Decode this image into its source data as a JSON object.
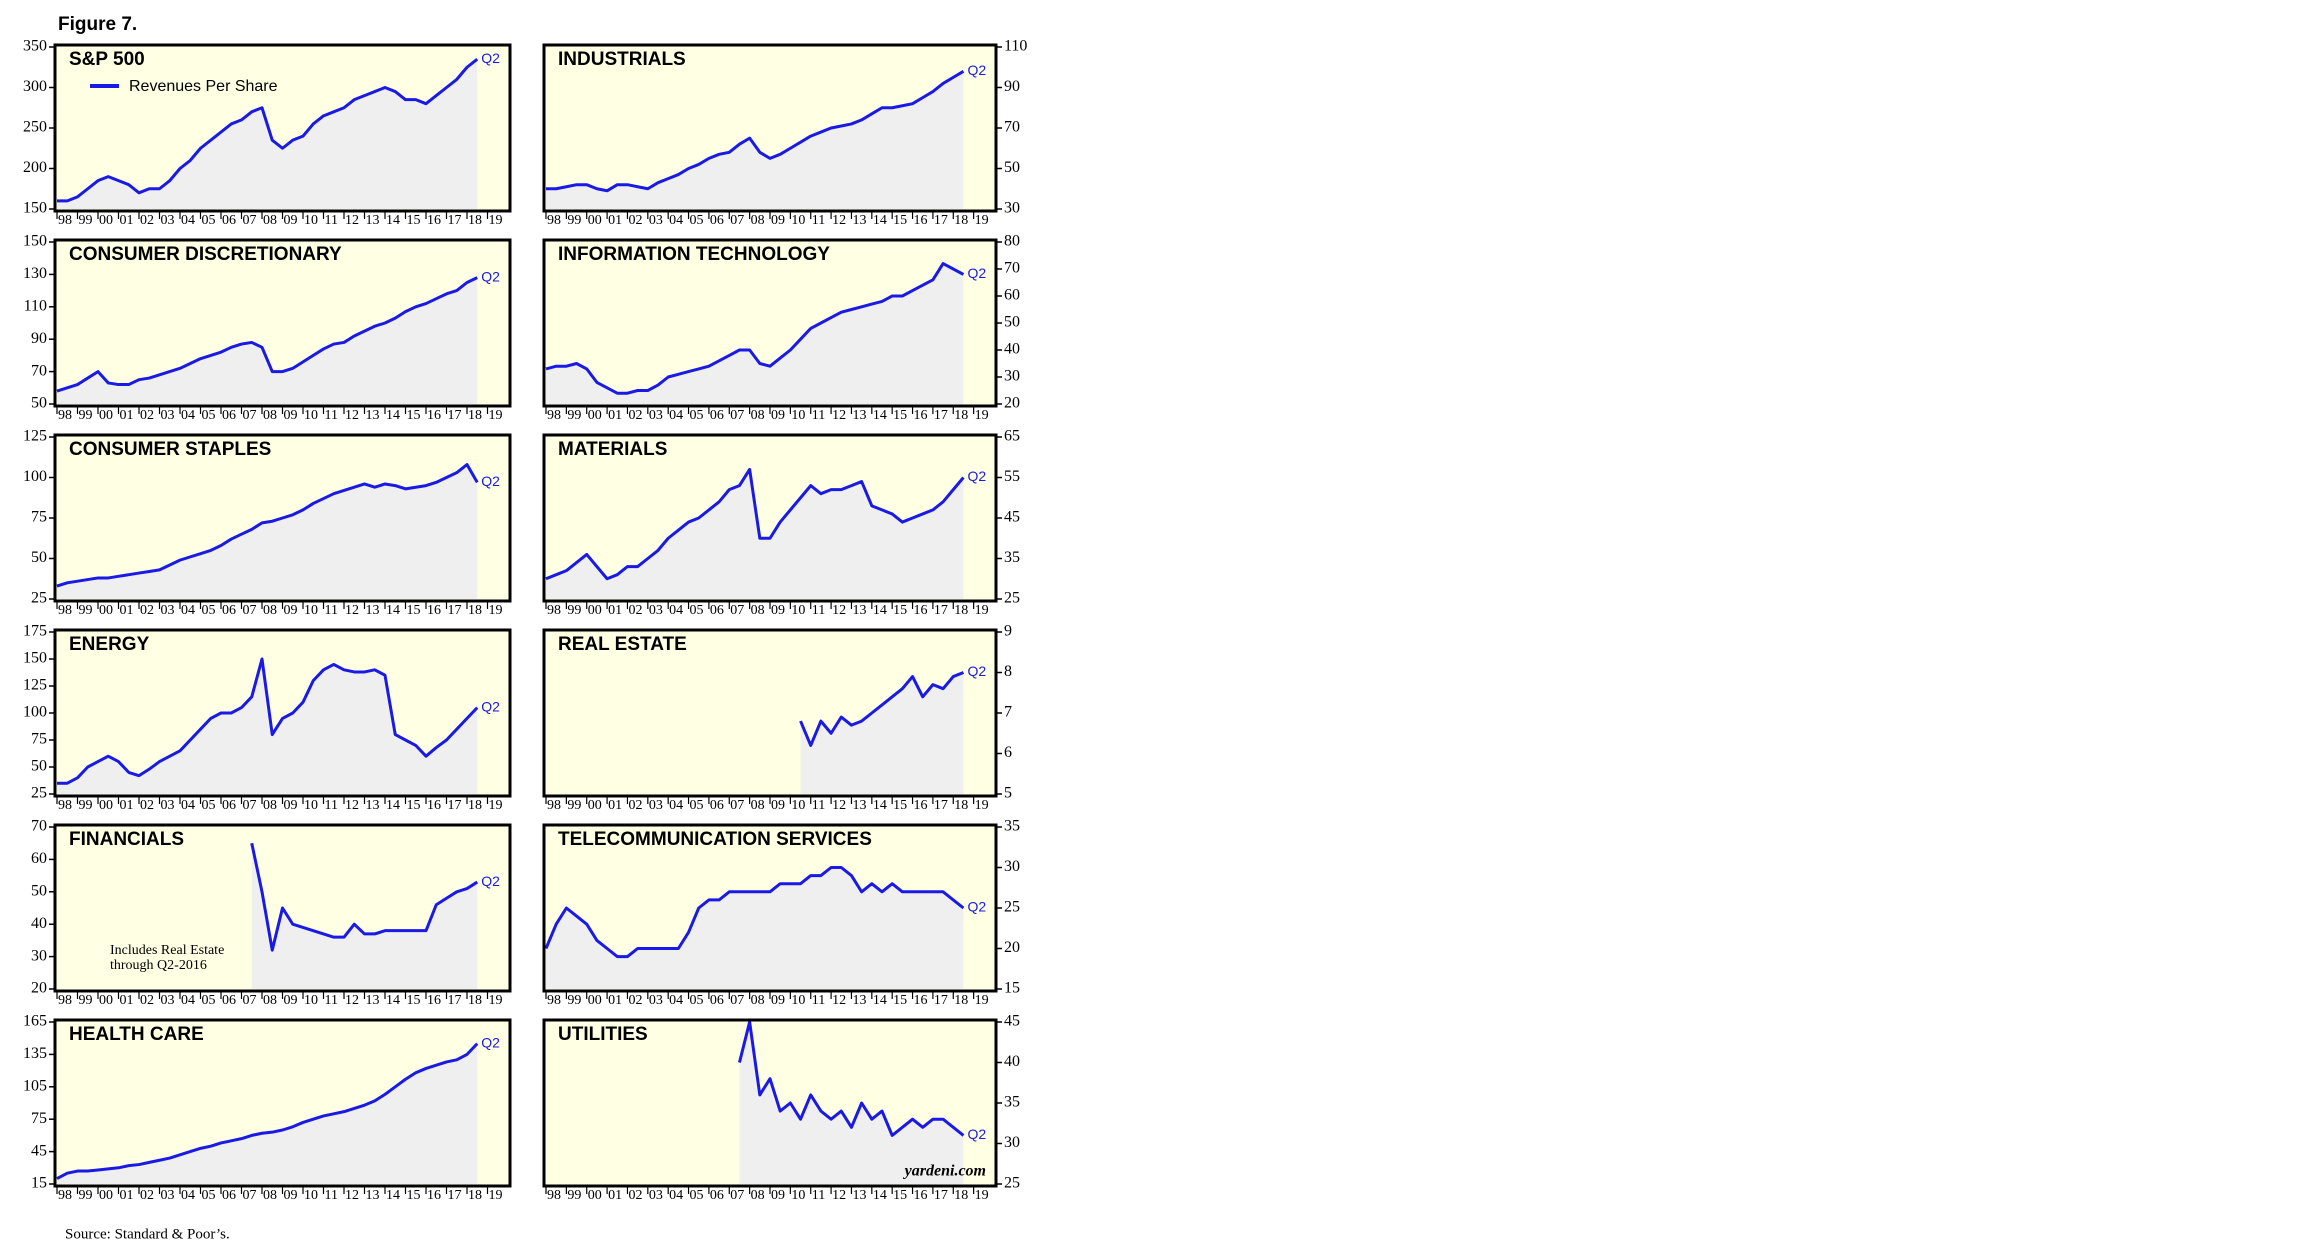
{
  "figure_label": "Figure 7.",
  "source": "Source: Standard & Poor’s.",
  "x_axis": {
    "xlim": [
      1998,
      2020
    ],
    "xticks": [
      {
        "value": 1998,
        "label": "98"
      },
      {
        "value": 1999,
        "label": "99"
      },
      {
        "value": 2000,
        "label": "00"
      },
      {
        "value": 2001,
        "label": "01"
      },
      {
        "value": 2002,
        "label": "02"
      },
      {
        "value": 2003,
        "label": "03"
      },
      {
        "value": 2004,
        "label": "04"
      },
      {
        "value": 2005,
        "label": "05"
      },
      {
        "value": 2006,
        "label": "06"
      },
      {
        "value": 2007,
        "label": "07"
      },
      {
        "value": 2008,
        "label": "08"
      },
      {
        "value": 2009,
        "label": "09"
      },
      {
        "value": 2010,
        "label": "10"
      },
      {
        "value": 2011,
        "label": "11"
      },
      {
        "value": 2012,
        "label": "12"
      },
      {
        "value": 2013,
        "label": "13"
      },
      {
        "value": 2014,
        "label": "14"
      },
      {
        "value": 2015,
        "label": "15"
      },
      {
        "value": 2016,
        "label": "16"
      },
      {
        "value": 2017,
        "label": "17"
      },
      {
        "value": 2018,
        "label": "18"
      },
      {
        "value": 2019,
        "label": "19"
      }
    ]
  },
  "chart_data": [
    {
      "type": "line",
      "title": "S&P 500",
      "legend": "Revenues Per Share",
      "end_label": "Q2",
      "color": "#1a1ae6",
      "yaxis_side": "left",
      "ylim": [
        150,
        350
      ],
      "yticks": [
        150,
        200,
        250,
        300,
        350
      ],
      "x": [
        1998,
        1998.5,
        1999,
        1999.5,
        2000,
        2000.5,
        2001,
        2001.5,
        2002,
        2002.5,
        2003,
        2003.5,
        2004,
        2004.5,
        2005,
        2005.5,
        2006,
        2006.5,
        2007,
        2007.5,
        2008,
        2008.5,
        2009,
        2009.5,
        2010,
        2010.5,
        2011,
        2011.5,
        2012,
        2012.5,
        2013,
        2013.5,
        2014,
        2014.5,
        2015,
        2015.5,
        2016,
        2016.5,
        2017,
        2017.5,
        2018,
        2018.5
      ],
      "values": [
        160,
        160,
        165,
        175,
        185,
        190,
        185,
        180,
        170,
        175,
        175,
        185,
        200,
        210,
        225,
        235,
        245,
        255,
        260,
        270,
        275,
        235,
        225,
        235,
        240,
        255,
        265,
        270,
        275,
        285,
        290,
        295,
        300,
        295,
        285,
        285,
        280,
        290,
        300,
        310,
        325,
        335
      ]
    },
    {
      "type": "line",
      "title": "INDUSTRIALS",
      "end_label": "Q2",
      "color": "#1a1ae6",
      "yaxis_side": "right",
      "ylim": [
        30,
        110
      ],
      "yticks": [
        30,
        50,
        70,
        90,
        110
      ],
      "x": [
        1998,
        1998.5,
        1999,
        1999.5,
        2000,
        2000.5,
        2001,
        2001.5,
        2002,
        2002.5,
        2003,
        2003.5,
        2004,
        2004.5,
        2005,
        2005.5,
        2006,
        2006.5,
        2007,
        2007.5,
        2008,
        2008.5,
        2009,
        2009.5,
        2010,
        2010.5,
        2011,
        2011.5,
        2012,
        2012.5,
        2013,
        2013.5,
        2014,
        2014.5,
        2015,
        2015.5,
        2016,
        2016.5,
        2017,
        2017.5,
        2018,
        2018.5
      ],
      "values": [
        40,
        40,
        41,
        42,
        42,
        40,
        39,
        42,
        42,
        41,
        40,
        43,
        45,
        47,
        50,
        52,
        55,
        57,
        58,
        62,
        65,
        58,
        55,
        57,
        60,
        63,
        66,
        68,
        70,
        71,
        72,
        74,
        77,
        80,
        80,
        81,
        82,
        85,
        88,
        92,
        95,
        98
      ]
    },
    {
      "type": "line",
      "title": "CONSUMER DISCRETIONARY",
      "end_label": "Q2",
      "color": "#1a1ae6",
      "yaxis_side": "left",
      "ylim": [
        50,
        150
      ],
      "yticks": [
        50,
        70,
        90,
        110,
        130,
        150
      ],
      "x": [
        1998,
        1998.5,
        1999,
        1999.5,
        2000,
        2000.5,
        2001,
        2001.5,
        2002,
        2002.5,
        2003,
        2003.5,
        2004,
        2004.5,
        2005,
        2005.5,
        2006,
        2006.5,
        2007,
        2007.5,
        2008,
        2008.5,
        2009,
        2009.5,
        2010,
        2010.5,
        2011,
        2011.5,
        2012,
        2012.5,
        2013,
        2013.5,
        2014,
        2014.5,
        2015,
        2015.5,
        2016,
        2016.5,
        2017,
        2017.5,
        2018,
        2018.5
      ],
      "values": [
        58,
        60,
        62,
        66,
        70,
        63,
        62,
        62,
        65,
        66,
        68,
        70,
        72,
        75,
        78,
        80,
        82,
        85,
        87,
        88,
        85,
        70,
        70,
        72,
        76,
        80,
        84,
        87,
        88,
        92,
        95,
        98,
        100,
        103,
        107,
        110,
        112,
        115,
        118,
        120,
        125,
        128
      ]
    },
    {
      "type": "line",
      "title": "INFORMATION TECHNOLOGY",
      "end_label": "Q2",
      "color": "#1a1ae6",
      "yaxis_side": "right",
      "ylim": [
        20,
        80
      ],
      "yticks": [
        20,
        30,
        40,
        50,
        60,
        70,
        80
      ],
      "x": [
        1998,
        1998.5,
        1999,
        1999.5,
        2000,
        2000.5,
        2001,
        2001.5,
        2002,
        2002.5,
        2003,
        2003.5,
        2004,
        2004.5,
        2005,
        2005.5,
        2006,
        2006.5,
        2007,
        2007.5,
        2008,
        2008.5,
        2009,
        2009.5,
        2010,
        2010.5,
        2011,
        2011.5,
        2012,
        2012.5,
        2013,
        2013.5,
        2014,
        2014.5,
        2015,
        2015.5,
        2016,
        2016.5,
        2017,
        2017.5,
        2018,
        2018.5
      ],
      "values": [
        33,
        34,
        34,
        35,
        33,
        28,
        26,
        24,
        24,
        25,
        25,
        27,
        30,
        31,
        32,
        33,
        34,
        36,
        38,
        40,
        40,
        35,
        34,
        37,
        40,
        44,
        48,
        50,
        52,
        54,
        55,
        56,
        57,
        58,
        60,
        60,
        62,
        64,
        66,
        72,
        70,
        68
      ]
    },
    {
      "type": "line",
      "title": "CONSUMER STAPLES",
      "end_label": "Q2",
      "color": "#1a1ae6",
      "yaxis_side": "left",
      "ylim": [
        25,
        125
      ],
      "yticks": [
        25,
        50,
        75,
        100,
        125
      ],
      "x": [
        1998,
        1998.5,
        1999,
        1999.5,
        2000,
        2000.5,
        2001,
        2001.5,
        2002,
        2002.5,
        2003,
        2003.5,
        2004,
        2004.5,
        2005,
        2005.5,
        2006,
        2006.5,
        2007,
        2007.5,
        2008,
        2008.5,
        2009,
        2009.5,
        2010,
        2010.5,
        2011,
        2011.5,
        2012,
        2012.5,
        2013,
        2013.5,
        2014,
        2014.5,
        2015,
        2015.5,
        2016,
        2016.5,
        2017,
        2017.5,
        2018,
        2018.5
      ],
      "values": [
        33,
        35,
        36,
        37,
        38,
        38,
        39,
        40,
        41,
        42,
        43,
        46,
        49,
        51,
        53,
        55,
        58,
        62,
        65,
        68,
        72,
        73,
        75,
        77,
        80,
        84,
        87,
        90,
        92,
        94,
        96,
        94,
        96,
        95,
        93,
        94,
        95,
        97,
        100,
        103,
        108,
        97
      ]
    },
    {
      "type": "line",
      "title": "MATERIALS",
      "end_label": "Q2",
      "color": "#1a1ae6",
      "yaxis_side": "right",
      "ylim": [
        25,
        65
      ],
      "yticks": [
        25,
        35,
        45,
        55,
        65
      ],
      "x": [
        1998,
        1998.5,
        1999,
        1999.5,
        2000,
        2000.5,
        2001,
        2001.5,
        2002,
        2002.5,
        2003,
        2003.5,
        2004,
        2004.5,
        2005,
        2005.5,
        2006,
        2006.5,
        2007,
        2007.5,
        2008,
        2008.5,
        2009,
        2009.5,
        2010,
        2010.5,
        2011,
        2011.5,
        2012,
        2012.5,
        2013,
        2013.5,
        2014,
        2014.5,
        2015,
        2015.5,
        2016,
        2016.5,
        2017,
        2017.5,
        2018,
        2018.5
      ],
      "values": [
        30,
        31,
        32,
        34,
        36,
        33,
        30,
        31,
        33,
        33,
        35,
        37,
        40,
        42,
        44,
        45,
        47,
        49,
        52,
        53,
        57,
        40,
        40,
        44,
        47,
        50,
        53,
        51,
        52,
        52,
        53,
        54,
        48,
        47,
        46,
        44,
        45,
        46,
        47,
        49,
        52,
        55
      ]
    },
    {
      "type": "line",
      "title": "ENERGY",
      "end_label": "Q2",
      "color": "#1a1ae6",
      "yaxis_side": "left",
      "ylim": [
        25,
        175
      ],
      "yticks": [
        25,
        50,
        75,
        100,
        125,
        150,
        175
      ],
      "x": [
        1998,
        1998.5,
        1999,
        1999.5,
        2000,
        2000.5,
        2001,
        2001.5,
        2002,
        2002.5,
        2003,
        2003.5,
        2004,
        2004.5,
        2005,
        2005.5,
        2006,
        2006.5,
        2007,
        2007.5,
        2008,
        2008.5,
        2009,
        2009.5,
        2010,
        2010.5,
        2011,
        2011.5,
        2012,
        2012.5,
        2013,
        2013.5,
        2014,
        2014.5,
        2015,
        2015.5,
        2016,
        2016.5,
        2017,
        2017.5,
        2018,
        2018.5
      ],
      "values": [
        35,
        35,
        40,
        50,
        55,
        60,
        55,
        45,
        42,
        48,
        55,
        60,
        65,
        75,
        85,
        95,
        100,
        100,
        105,
        115,
        150,
        80,
        95,
        100,
        110,
        130,
        140,
        145,
        140,
        138,
        138,
        140,
        135,
        80,
        75,
        70,
        60,
        68,
        75,
        85,
        95,
        105
      ]
    },
    {
      "type": "line",
      "title": "REAL ESTATE",
      "end_label": "Q2",
      "color": "#1a1ae6",
      "yaxis_side": "right",
      "ylim": [
        5,
        9
      ],
      "yticks": [
        5,
        6,
        7,
        8,
        9
      ],
      "x": [
        2010.5,
        2011,
        2011.5,
        2012,
        2012.5,
        2013,
        2013.5,
        2014,
        2014.5,
        2015,
        2015.5,
        2016,
        2016.5,
        2017,
        2017.5,
        2018,
        2018.5
      ],
      "values": [
        6.8,
        6.2,
        6.8,
        6.5,
        6.9,
        6.7,
        6.8,
        7.0,
        7.2,
        7.4,
        7.6,
        7.9,
        7.4,
        7.7,
        7.6,
        7.9,
        8.0
      ]
    },
    {
      "type": "line",
      "title": "FINANCIALS",
      "end_label": "Q2",
      "annotation": [
        "Includes Real Estate",
        "through Q2-2016"
      ],
      "color": "#1a1ae6",
      "yaxis_side": "left",
      "ylim": [
        20,
        70
      ],
      "yticks": [
        20,
        30,
        40,
        50,
        60,
        70
      ],
      "x": [
        2007.5,
        2008,
        2008.5,
        2009,
        2009.5,
        2010,
        2010.5,
        2011,
        2011.5,
        2012,
        2012.5,
        2013,
        2013.5,
        2014,
        2014.5,
        2015,
        2015.5,
        2016,
        2016.5,
        2017,
        2017.5,
        2018,
        2018.5
      ],
      "values": [
        65,
        50,
        32,
        45,
        40,
        39,
        38,
        37,
        36,
        36,
        40,
        37,
        37,
        38,
        38,
        38,
        38,
        38,
        46,
        48,
        50,
        51,
        53
      ]
    },
    {
      "type": "line",
      "title": "TELECOMMUNICATION SERVICES",
      "end_label": "Q2",
      "color": "#1a1ae6",
      "yaxis_side": "right",
      "ylim": [
        15,
        35
      ],
      "yticks": [
        15,
        20,
        25,
        30,
        35
      ],
      "x": [
        1998,
        1998.5,
        1999,
        1999.5,
        2000,
        2000.5,
        2001,
        2001.5,
        2002,
        2002.5,
        2003,
        2003.5,
        2004,
        2004.5,
        2005,
        2005.5,
        2006,
        2006.5,
        2007,
        2007.5,
        2008,
        2008.5,
        2009,
        2009.5,
        2010,
        2010.5,
        2011,
        2011.5,
        2012,
        2012.5,
        2013,
        2013.5,
        2014,
        2014.5,
        2015,
        2015.5,
        2016,
        2016.5,
        2017,
        2017.5,
        2018,
        2018.5
      ],
      "values": [
        20,
        23,
        25,
        24,
        23,
        21,
        20,
        19,
        19,
        20,
        20,
        20,
        20,
        20,
        22,
        25,
        26,
        26,
        27,
        27,
        27,
        27,
        27,
        28,
        28,
        28,
        29,
        29,
        30,
        30,
        29,
        27,
        28,
        27,
        28,
        27,
        27,
        27,
        27,
        27,
        26,
        25
      ]
    },
    {
      "type": "line",
      "title": "HEALTH CARE",
      "end_label": "Q2",
      "color": "#1a1ae6",
      "yaxis_side": "left",
      "ylim": [
        15,
        165
      ],
      "yticks": [
        15,
        45,
        75,
        105,
        135,
        165
      ],
      "x": [
        1998,
        1998.5,
        1999,
        1999.5,
        2000,
        2000.5,
        2001,
        2001.5,
        2002,
        2002.5,
        2003,
        2003.5,
        2004,
        2004.5,
        2005,
        2005.5,
        2006,
        2006.5,
        2007,
        2007.5,
        2008,
        2008.5,
        2009,
        2009.5,
        2010,
        2010.5,
        2011,
        2011.5,
        2012,
        2012.5,
        2013,
        2013.5,
        2014,
        2014.5,
        2015,
        2015.5,
        2016,
        2016.5,
        2017,
        2017.5,
        2018,
        2018.5
      ],
      "values": [
        20,
        25,
        27,
        27,
        28,
        29,
        30,
        32,
        33,
        35,
        37,
        39,
        42,
        45,
        48,
        50,
        53,
        55,
        57,
        60,
        62,
        63,
        65,
        68,
        72,
        75,
        78,
        80,
        82,
        85,
        88,
        92,
        98,
        105,
        112,
        118,
        122,
        125,
        128,
        130,
        135,
        145
      ]
    },
    {
      "type": "line",
      "title": "UTILITIES",
      "end_label": "Q2",
      "credit": "yardeni.com",
      "color": "#1a1ae6",
      "yaxis_side": "right",
      "ylim": [
        25,
        45
      ],
      "yticks": [
        25,
        30,
        35,
        40,
        45
      ],
      "x": [
        2007.5,
        2008,
        2008.5,
        2009,
        2009.5,
        2010,
        2010.5,
        2011,
        2011.5,
        2012,
        2012.5,
        2013,
        2013.5,
        2014,
        2014.5,
        2015,
        2015.5,
        2016,
        2016.5,
        2017,
        2017.5,
        2018,
        2018.5
      ],
      "values": [
        40,
        45,
        36,
        38,
        34,
        35,
        33,
        36,
        34,
        33,
        34,
        32,
        35,
        33,
        34,
        31,
        32,
        33,
        32,
        33,
        33,
        32,
        31
      ]
    }
  ]
}
